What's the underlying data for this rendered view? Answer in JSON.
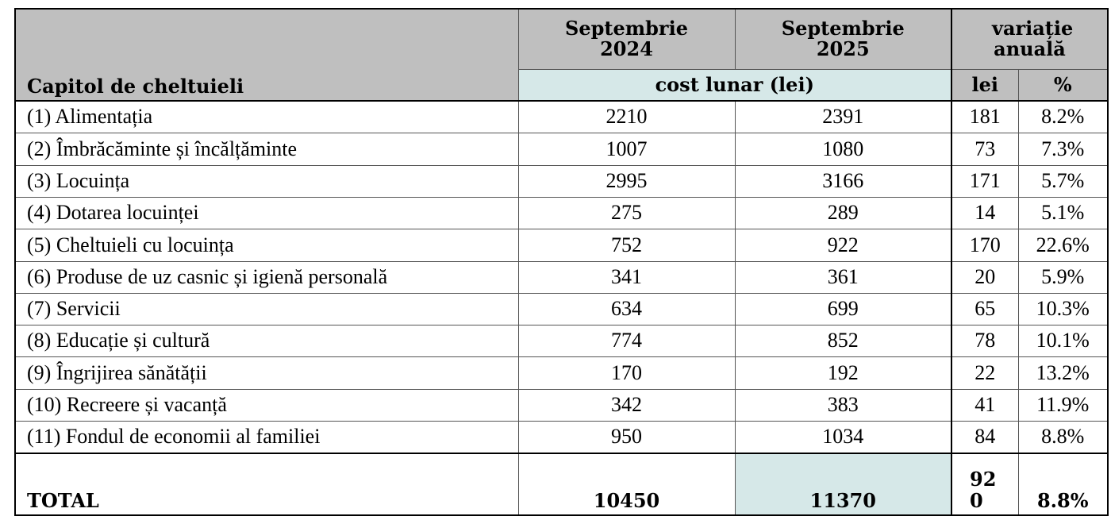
{
  "table": {
    "header": {
      "category": "Capitol de cheltuieli",
      "period_1": "Septembrie 2024",
      "period_2": "Septembrie 2025",
      "change": "variație anuală",
      "cost_unit": "cost lunar (lei)",
      "change_lei": "lei",
      "change_pct": "%"
    },
    "rows": [
      [
        "(1) Alimentația",
        2210,
        2391,
        181,
        "8.2%"
      ],
      [
        "(2) Îmbrăcăminte și încălțăminte",
        1007,
        1080,
        73,
        "7.3%"
      ],
      [
        "(3) Locuința",
        2995,
        3166,
        171,
        "5.7%"
      ],
      [
        "(4) Dotarea locuinței",
        275,
        289,
        14,
        "5.1%"
      ],
      [
        "(5) Cheltuieli cu locuința",
        752,
        922,
        170,
        "22.6%"
      ],
      [
        "(6) Produse de uz casnic și igienă personală",
        341,
        361,
        20,
        "5.9%"
      ],
      [
        "(7) Servicii",
        634,
        699,
        65,
        "10.3%"
      ],
      [
        "(8) Educație și cultură",
        774,
        852,
        78,
        "10.1%"
      ],
      [
        "(9) Îngrijirea sănătății",
        170,
        192,
        22,
        "13.2%"
      ],
      [
        "(10) Recreere și vacanță",
        342,
        383,
        41,
        "11.9%"
      ],
      [
        "(11) Fondul de economii al familiei",
        950,
        1034,
        84,
        "8.8%"
      ]
    ],
    "total": [
      "TOTAL",
      10450,
      11370,
      920,
      "8.8%"
    ]
  }
}
